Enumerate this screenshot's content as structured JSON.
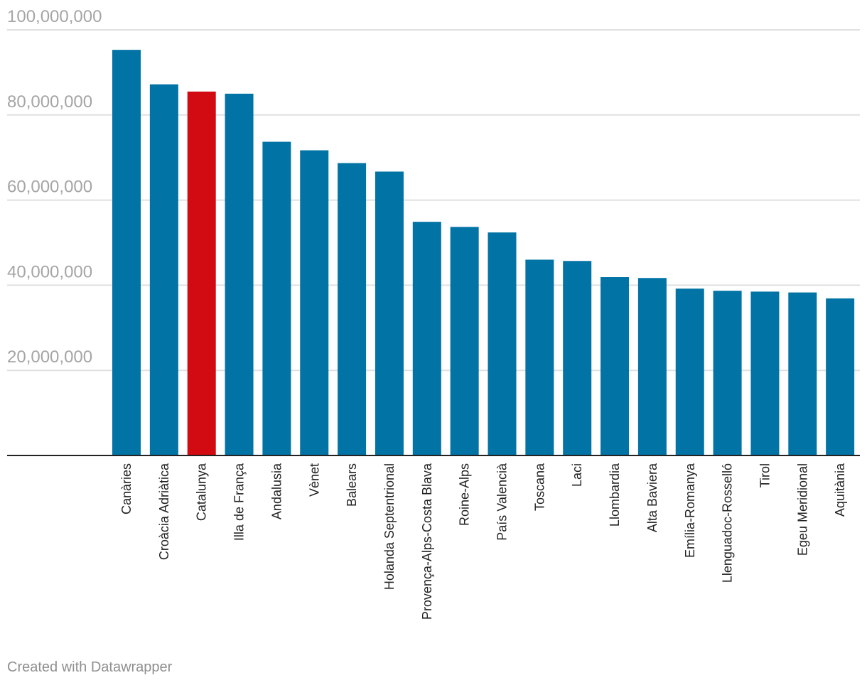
{
  "chart_data": {
    "type": "bar",
    "categories": [
      "Canàries",
      "Croàcia Adriàtica",
      "Catalunya",
      "Illa de França",
      "Andalusia",
      "Vènet",
      "Balears",
      "Holanda Septentrional",
      "Provença-Alps-Costa Blava",
      "Roine-Alps",
      "País Valencià",
      "Toscana",
      "Laci",
      "Llombardia",
      "Alta Baviera",
      "Emília-Romanya",
      "Llenguadoc-Rosselló",
      "Tirol",
      "Egeu Meridional",
      "Aquitània"
    ],
    "values": [
      95300000,
      87200000,
      85500000,
      85000000,
      73700000,
      71700000,
      68700000,
      66700000,
      54900000,
      53700000,
      52400000,
      46000000,
      45700000,
      41900000,
      41700000,
      39200000,
      38700000,
      38500000,
      38300000,
      36900000
    ],
    "highlight_category": "Catalunya",
    "colors": {
      "bar": "#0173a5",
      "highlight": "#d20a11",
      "grid": "#e0e0e0",
      "baseline": "#222222"
    },
    "y_ticks": [
      20000000,
      40000000,
      60000000,
      80000000,
      100000000
    ],
    "y_tick_labels": [
      "20,000,000",
      "40,000,000",
      "60,000,000",
      "80,000,000",
      "100,000,000"
    ],
    "ylim": [
      0,
      100000000
    ],
    "title": "",
    "xlabel": "",
    "ylabel": "",
    "grid": true,
    "legend": "none"
  },
  "footer": {
    "credit": "Created with Datawrapper"
  }
}
